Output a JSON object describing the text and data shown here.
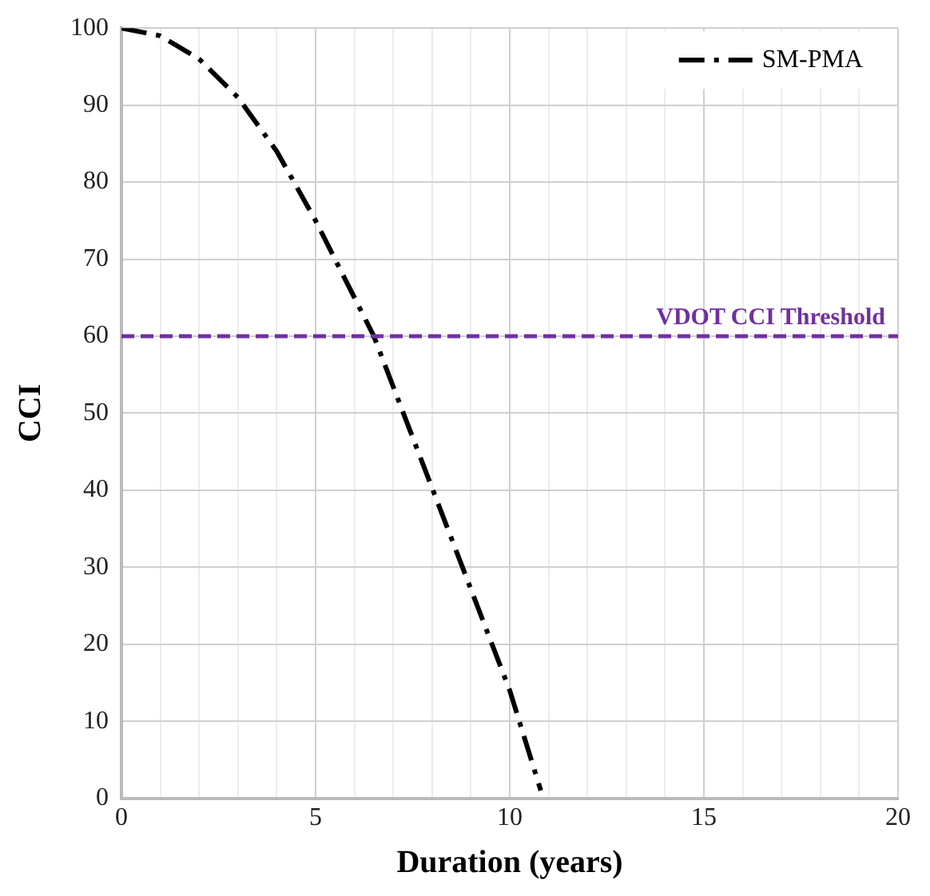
{
  "chart_data": {
    "type": "line",
    "xlabel": "Duration (years)",
    "ylabel": "CCI",
    "x": [
      0,
      1,
      2,
      3,
      4,
      5,
      6.5,
      10,
      10.8
    ],
    "series": [
      {
        "name": "SM-PMA",
        "color": "#000000",
        "values": [
          100,
          99,
          96,
          91,
          84,
          75,
          60,
          14,
          1
        ]
      }
    ],
    "xlim": [
      0,
      20
    ],
    "xticks": [
      0,
      {
        "value": 1,
        "label": null
      },
      {
        "value": 2,
        "label": null
      },
      {
        "value": 3,
        "label": null
      },
      {
        "value": 4,
        "label": null
      },
      5,
      {
        "value": 6,
        "label": null
      },
      {
        "value": 7,
        "label": null
      },
      {
        "value": 8,
        "label": null
      },
      {
        "value": 9,
        "label": null
      },
      10,
      {
        "value": 11,
        "label": null
      },
      {
        "value": 12,
        "label": null
      },
      {
        "value": 13,
        "label": null
      },
      {
        "value": 14,
        "label": null
      },
      15,
      {
        "value": 16,
        "label": null
      },
      {
        "value": 17,
        "label": null
      },
      {
        "value": 18,
        "label": null
      },
      {
        "value": 19,
        "label": null
      },
      20
    ],
    "ylim": [
      0,
      100
    ],
    "yticks": [
      0,
      10,
      20,
      30,
      40,
      50,
      60,
      70,
      80,
      90,
      100
    ],
    "ref_lines": [
      {
        "axis": "y",
        "value": 60,
        "label": "VDOT CCI Threshold",
        "color": "#7030a0",
        "line_style": "dashed"
      }
    ],
    "grid": true,
    "legend": "top right",
    "marker": "none",
    "line_style": "dashed"
  }
}
